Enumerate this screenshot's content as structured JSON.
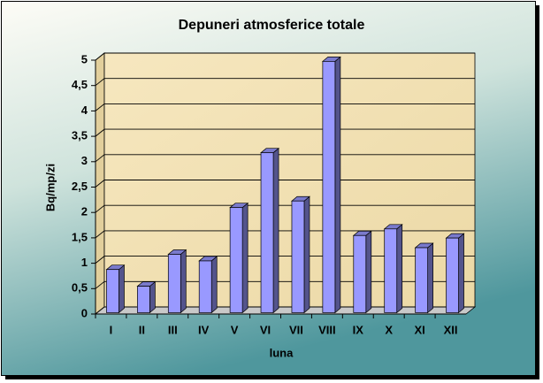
{
  "chart_data": {
    "type": "bar",
    "title": "Depuneri atmosferice totale",
    "x_label": "luna",
    "y_label": "Bq/mp/zi",
    "categories": [
      "I",
      "II",
      "III",
      "IV",
      "V",
      "VI",
      "VII",
      "VIII",
      "IX",
      "X",
      "XI",
      "XII"
    ],
    "values": [
      0.85,
      0.52,
      1.15,
      1.02,
      2.07,
      3.15,
      2.2,
      4.95,
      1.52,
      1.65,
      1.28,
      1.47
    ],
    "color": "#9999ff",
    "ylim": [
      0,
      5
    ],
    "yticks": [
      0,
      {
        "value": 0.5,
        "label": "0,5"
      },
      1,
      {
        "value": 1.5,
        "label": "1,5"
      },
      2,
      {
        "value": 2.5,
        "label": "2,5"
      },
      3,
      {
        "value": 3.5,
        "label": "3,5"
      },
      4,
      {
        "value": 4.5,
        "label": "4,5"
      },
      5
    ],
    "grid": true
  }
}
